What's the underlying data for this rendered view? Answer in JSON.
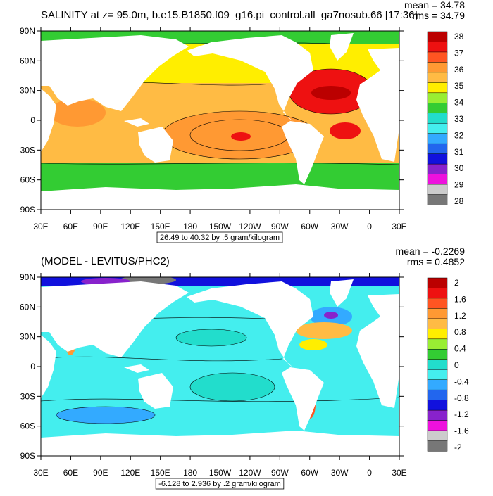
{
  "panels": [
    {
      "title": "SALINITY at z=  95.0m, b.e15.B1850.f09_g16.pi_control.all_ga7nosub.66 [17:36]",
      "mean": "mean = 34.78",
      "rms": "rms = 34.79",
      "info": "26.49 to 40.32 by .5 gram/kilogram",
      "lat_labels": [
        "90N",
        "60N",
        "30N",
        "0",
        "30S",
        "60S",
        "90S"
      ],
      "lon_labels": [
        "30E",
        "60E",
        "90E",
        "120E",
        "150E",
        "180",
        "150W",
        "120W",
        "90W",
        "60W",
        "30W",
        "0",
        "30E"
      ],
      "colorbar": {
        "labels": [
          38,
          37,
          36,
          35,
          34,
          33,
          32,
          31,
          30,
          29,
          28
        ],
        "colors": [
          "#bb0000",
          "#ee1111",
          "#ff5522",
          "#ff9933",
          "#ffbb44",
          "#ffee00",
          "#99ee33",
          "#33cc33",
          "#22ddcc",
          "#44eeee",
          "#33aaff",
          "#2266ee",
          "#1111dd",
          "#8822cc",
          "#ee11dd",
          "#cccccc",
          "#777777"
        ]
      }
    },
    {
      "title": "(MODEL - LEVITUS/PHC2)",
      "mean": "mean = -0.2269",
      "rms": "rms = 0.4852",
      "info": "-6.128 to 2.936 by .2 gram/kilogram",
      "lat_labels": [
        "90N",
        "60N",
        "30N",
        "0",
        "30S",
        "60S",
        "90S"
      ],
      "lon_labels": [
        "30E",
        "60E",
        "90E",
        "120E",
        "150E",
        "180",
        "150W",
        "120W",
        "90W",
        "60W",
        "30W",
        "0",
        "30E"
      ],
      "colorbar": {
        "labels": [
          2,
          1.6,
          1.2,
          0.8,
          0.4,
          0,
          -0.4,
          -0.8,
          -1.2,
          -1.6,
          -2
        ],
        "colors": [
          "#bb0000",
          "#ee1111",
          "#ff5522",
          "#ff9933",
          "#ffbb44",
          "#ffee00",
          "#99ee33",
          "#33cc33",
          "#22ddcc",
          "#44eeee",
          "#33aaff",
          "#2266ee",
          "#1111dd",
          "#8822cc",
          "#ee11dd",
          "#cccccc",
          "#777777"
        ]
      }
    }
  ]
}
